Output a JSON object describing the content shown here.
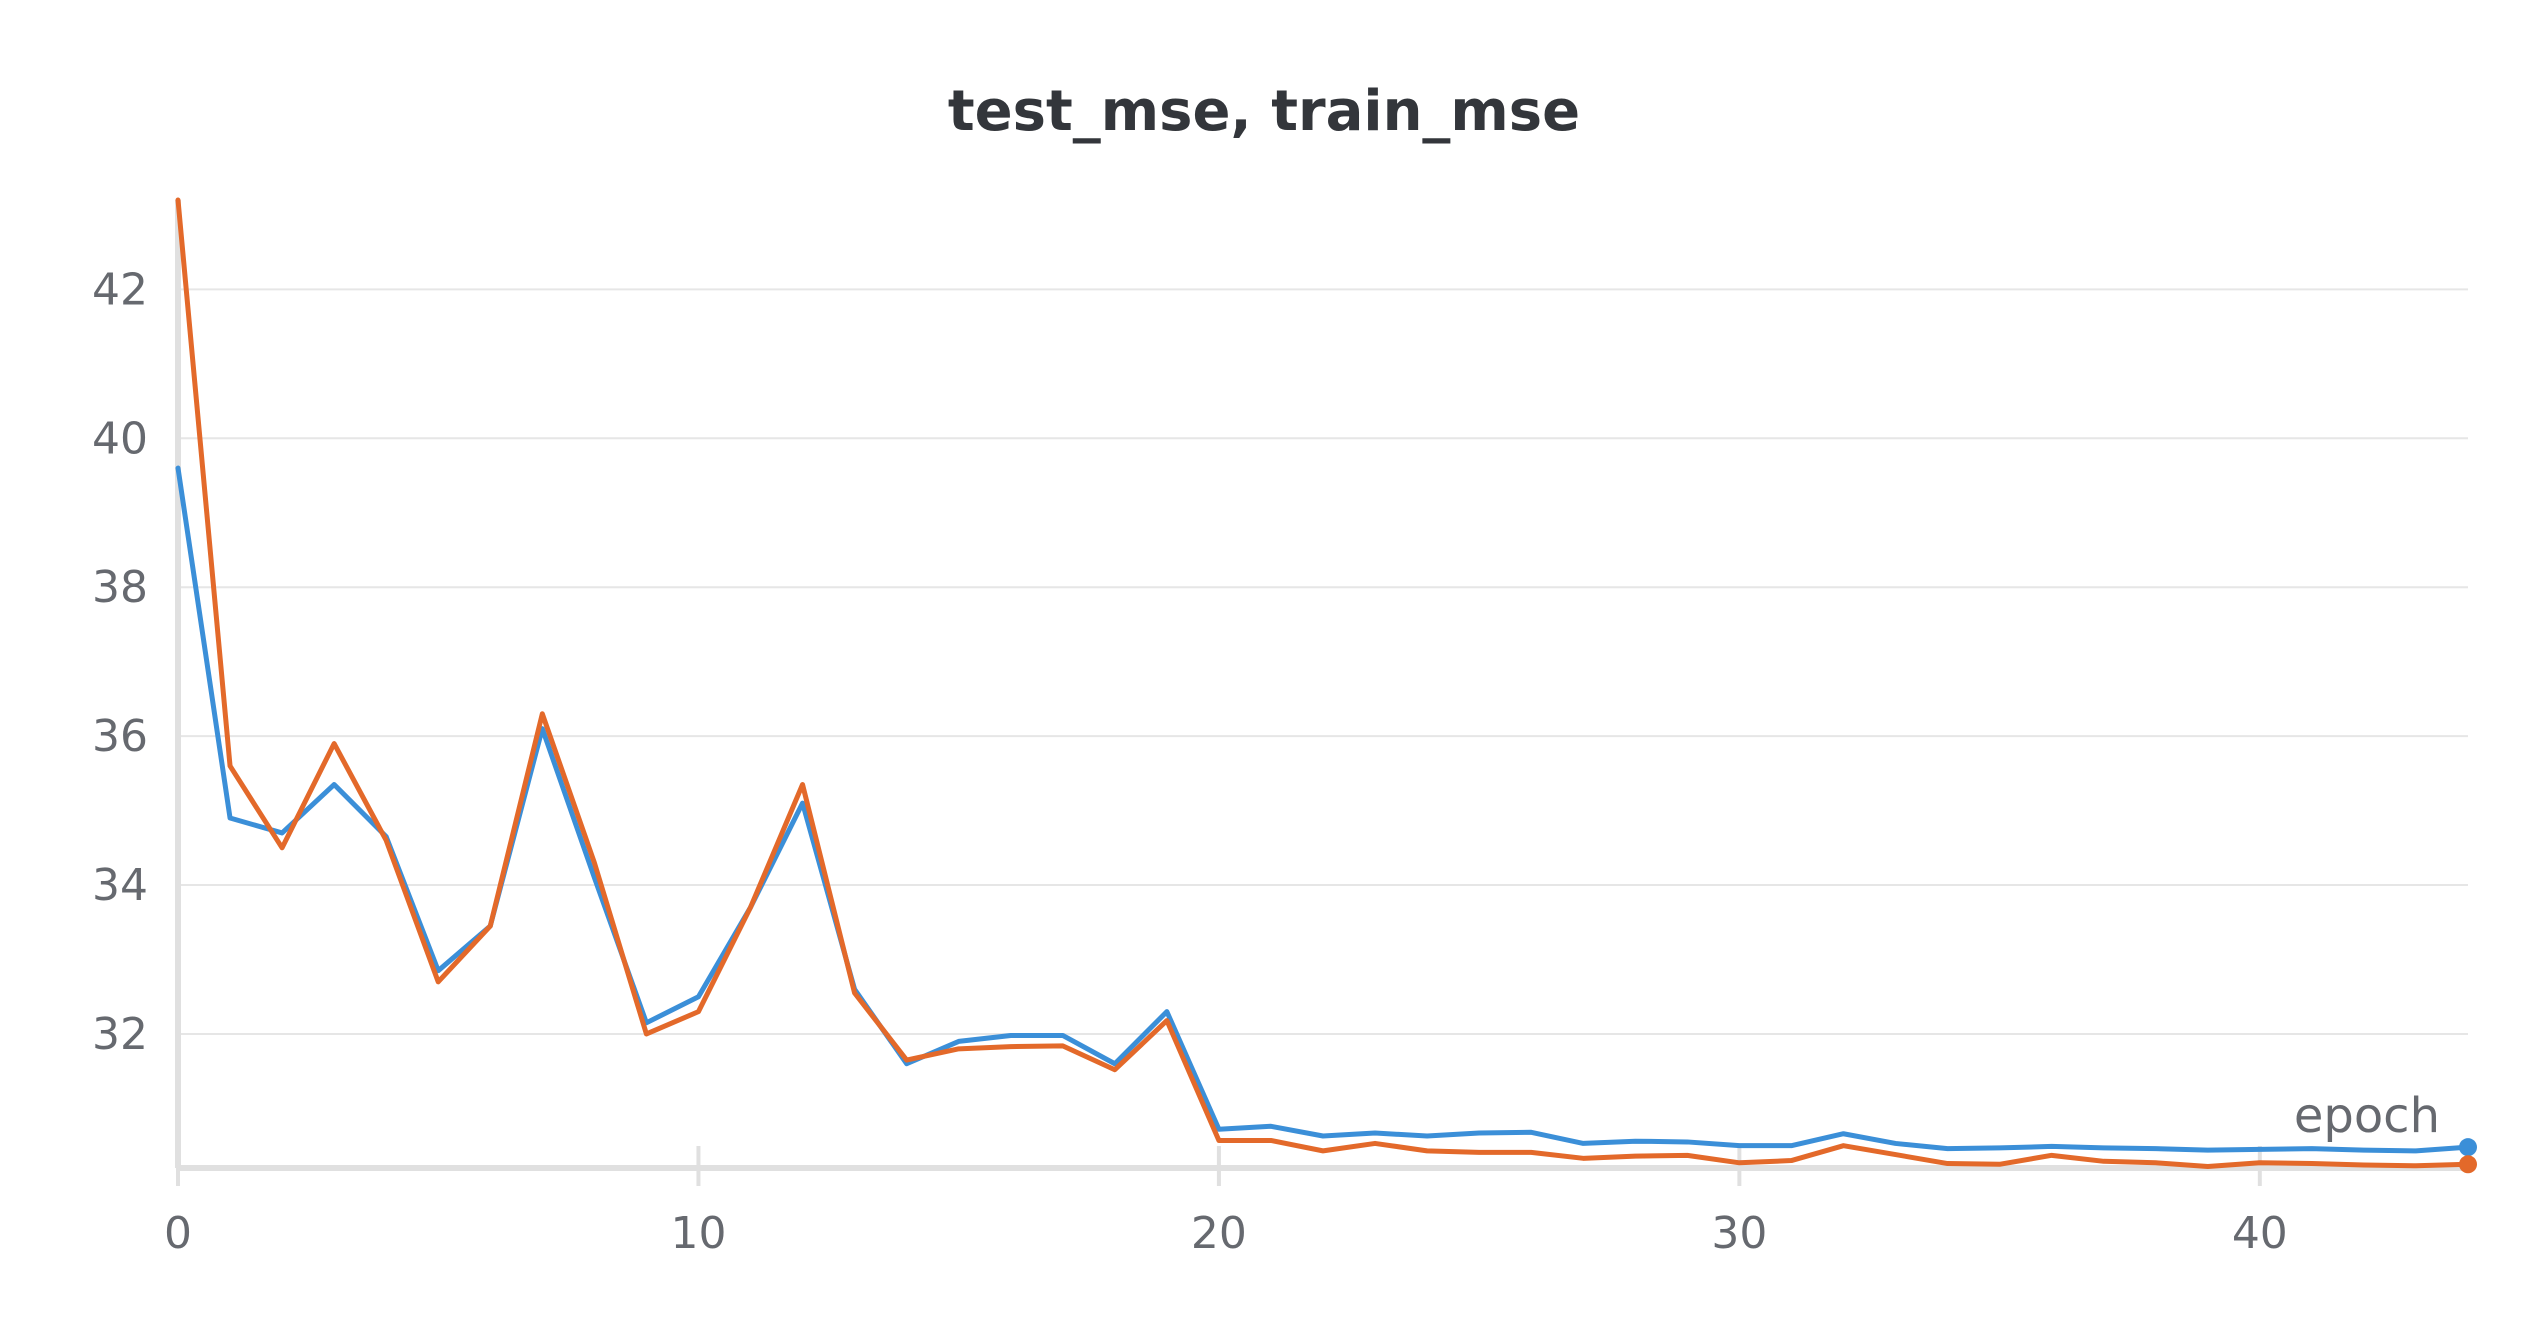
{
  "chart_data": {
    "type": "line",
    "title": "test_mse, train_mse",
    "xlabel": "epoch",
    "ylabel": "",
    "xlim": [
      0,
      44
    ],
    "ylim": [
      30.2,
      43.2
    ],
    "x_ticks": [
      0,
      10,
      20,
      30,
      40
    ],
    "y_ticks": [
      32,
      34,
      36,
      38,
      40,
      42
    ],
    "grid": true,
    "legend": "none",
    "x": [
      0,
      1,
      2,
      3,
      4,
      5,
      6,
      7,
      8,
      9,
      10,
      11,
      12,
      13,
      14,
      15,
      16,
      17,
      18,
      19,
      20,
      21,
      22,
      23,
      24,
      25,
      26,
      27,
      28,
      29,
      30,
      31,
      32,
      33,
      34,
      35,
      36,
      37,
      38,
      39,
      40,
      41,
      42,
      43,
      44
    ],
    "series": [
      {
        "color": "#3b8fd8",
        "values": [
          39.6,
          34.9,
          34.7,
          35.35,
          34.65,
          32.85,
          33.45,
          36.1,
          34.1,
          32.15,
          32.5,
          33.7,
          35.1,
          32.6,
          31.6,
          31.9,
          31.98,
          31.98,
          31.6,
          32.3,
          30.72,
          30.76,
          30.63,
          30.67,
          30.63,
          30.67,
          30.68,
          30.53,
          30.56,
          30.55,
          30.5,
          30.5,
          30.66,
          30.53,
          30.46,
          30.47,
          30.49,
          30.47,
          30.46,
          30.44,
          30.45,
          30.46,
          30.44,
          30.43,
          30.48
        ]
      },
      {
        "color": "#e3692a",
        "values": [
          43.2,
          35.6,
          34.5,
          35.9,
          34.6,
          32.7,
          33.45,
          36.3,
          34.3,
          32.0,
          32.3,
          33.7,
          35.35,
          32.55,
          31.65,
          31.8,
          31.83,
          31.84,
          31.52,
          32.18,
          30.57,
          30.57,
          30.43,
          30.53,
          30.43,
          30.41,
          30.41,
          30.33,
          30.36,
          30.37,
          30.27,
          30.3,
          30.5,
          30.38,
          30.26,
          30.25,
          30.37,
          30.29,
          30.27,
          30.22,
          30.27,
          30.26,
          30.24,
          30.23,
          30.25
        ]
      }
    ]
  }
}
